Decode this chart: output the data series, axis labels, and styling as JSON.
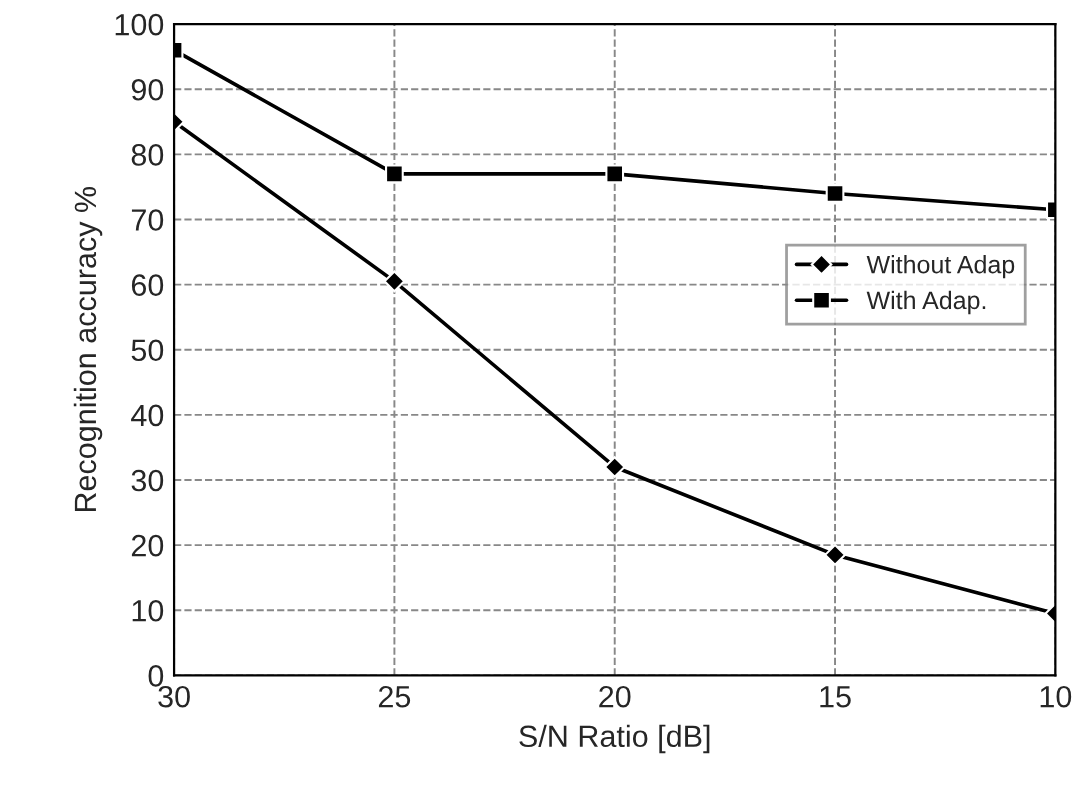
{
  "chart_data": {
    "type": "line",
    "xlabel": "S/N Ratio [dB]",
    "ylabel": "Recognition accuracy %",
    "x": [
      30,
      25,
      20,
      15,
      10
    ],
    "series": [
      {
        "name": "Without Adap",
        "color": "#000000",
        "marker": "diamond",
        "values": [
          85,
          60.5,
          32,
          18.5,
          9.5
        ]
      },
      {
        "name": "With Adap.",
        "color": "#000000",
        "marker": "square",
        "values": [
          96,
          77,
          77,
          74,
          71.5
        ]
      }
    ],
    "xlim": [
      30,
      10
    ],
    "xticks": [
      30,
      25,
      20,
      15,
      10
    ],
    "ylim": [
      0,
      100
    ],
    "yticks": [
      0,
      10,
      20,
      30,
      40,
      50,
      60,
      70,
      80,
      90,
      100
    ],
    "grid": true,
    "legend": "right",
    "line_style": "solid"
  }
}
